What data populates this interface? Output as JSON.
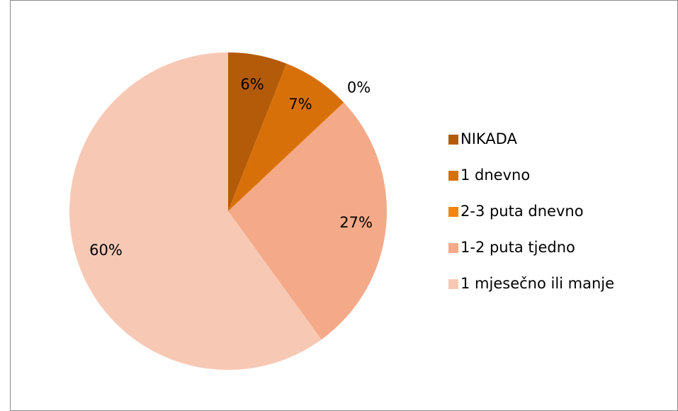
{
  "chart_data": {
    "type": "pie",
    "categories": [
      "NIKADA",
      "1 dnevno",
      "2-3 puta dnevno",
      "1-2 puta tjedno",
      "1 mjesečno ili manje"
    ],
    "values": [
      6,
      7,
      0,
      27,
      60
    ],
    "value_labels": [
      "6%",
      "7%",
      "0%",
      "27%",
      "60%"
    ],
    "colors": [
      "#b45b0a",
      "#d8700a",
      "#f0860f",
      "#f4aa88",
      "#f7c9b5"
    ],
    "legend": "right"
  }
}
